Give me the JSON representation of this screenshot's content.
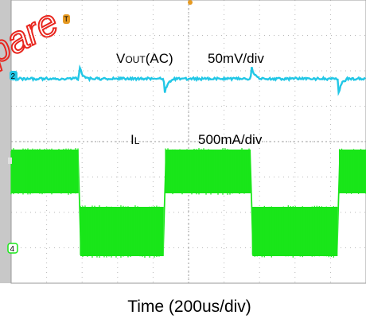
{
  "watermark": "pare",
  "time_scale_label": "Time (200us/div)",
  "channels": {
    "vout": {
      "marker": "2",
      "name": "VOUT(AC)",
      "name_main": "V",
      "name_sub": "OUT",
      "name_suffix": "(AC)",
      "scale": "50mV/div",
      "color": "#22c7e6"
    },
    "il": {
      "marker": "4",
      "name": "IL",
      "name_main": "I",
      "name_sub": "L",
      "scale": "500mA/div",
      "color": "#19e619"
    }
  },
  "trigger_marker": "T",
  "chart_data": {
    "type": "line",
    "title": "",
    "xlabel": "Time (200us/div)",
    "x_units": "div",
    "xlim": [
      0,
      10
    ],
    "grid": true,
    "load_step_times_div": [
      1.9,
      4.3,
      6.75,
      9.2
    ],
    "series": [
      {
        "name": "VOUT(AC)",
        "scale": "50mV/div",
        "color": "#22c7e6",
        "steady_div": 0,
        "undershoot_peak_div": 2.9,
        "overshoot_peak_div": -2.4,
        "recovery_div": 0.25
      },
      {
        "name": "IL",
        "scale": "500mA/div",
        "color": "#19e619",
        "high_level_div_band": [
          -0.8,
          -2.2
        ],
        "low_level_div_band": [
          0.6,
          1.7
        ],
        "x": [
          0,
          1.9,
          1.95,
          4.3,
          4.35,
          6.75,
          6.8,
          9.2,
          9.25,
          10
        ],
        "states": [
          "high",
          "high",
          "low",
          "low",
          "high",
          "high",
          "low",
          "low",
          "high",
          "high"
        ]
      }
    ]
  }
}
